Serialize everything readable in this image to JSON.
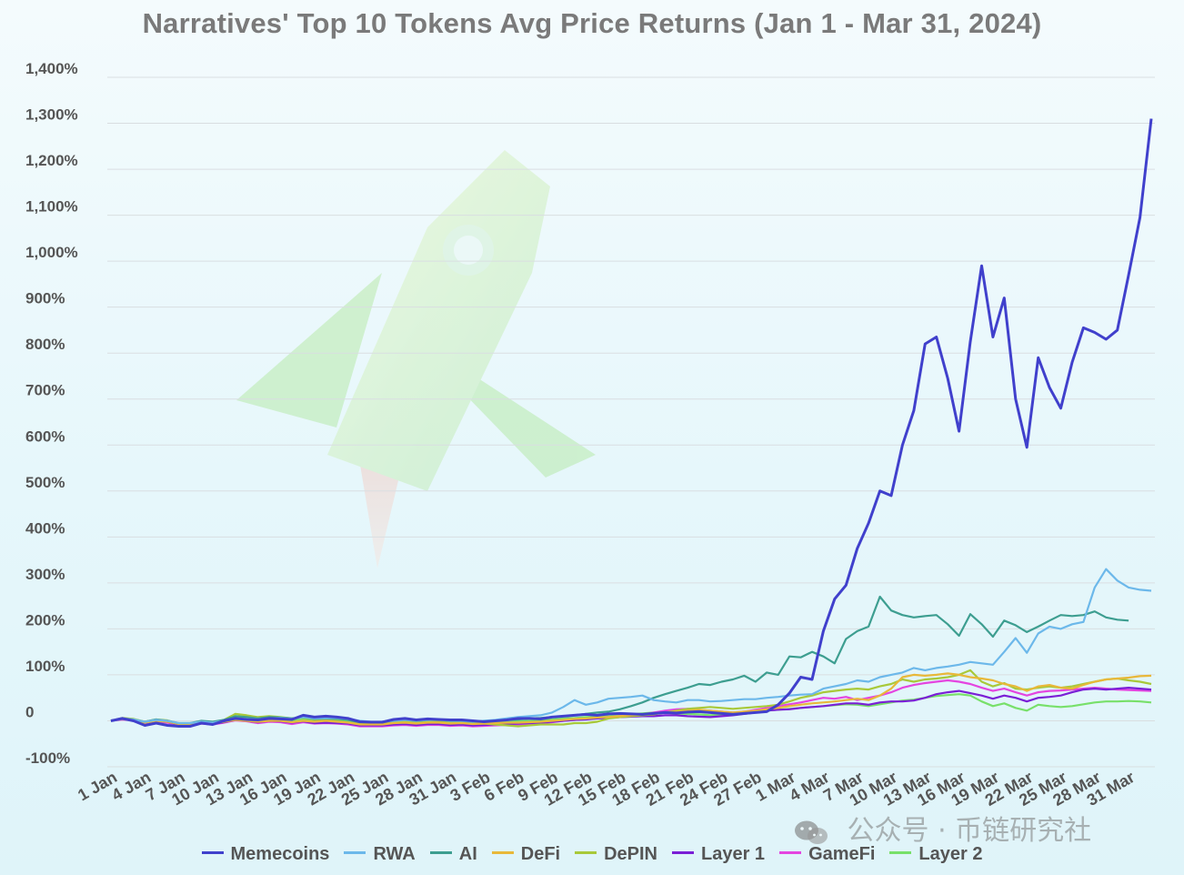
{
  "title": "Narratives' Top 10 Tokens Avg Price Returns (Jan 1 - Mar 31, 2024)",
  "watermark": "公众号 · 币链研究社",
  "chart_data": {
    "type": "line",
    "title": "Narratives' Top 10 Tokens Avg Price Returns (Jan 1 - Mar 31, 2024)",
    "xlabel": "",
    "ylabel": "",
    "ylim": [
      -100,
      1400
    ],
    "y_ticks": [
      -100,
      0,
      100,
      200,
      300,
      400,
      500,
      600,
      700,
      800,
      900,
      1000,
      1100,
      1200,
      1300,
      1400
    ],
    "y_tick_labels": [
      "-100%",
      "0",
      "100%",
      "200%",
      "300%",
      "400%",
      "500%",
      "600%",
      "700%",
      "800%",
      "900%",
      "1,000%",
      "1,100%",
      "1,200%",
      "1,300%",
      "1,400%"
    ],
    "x_start": "2024-01-01",
    "x_end": "2024-03-31",
    "x_ticks": [
      "1 Jan",
      "4 Jan",
      "7 Jan",
      "10 Jan",
      "13 Jan",
      "16 Jan",
      "19 Jan",
      "22 Jan",
      "25 Jan",
      "28 Jan",
      "31 Jan",
      "3 Feb",
      "6 Feb",
      "9 Feb",
      "12 Feb",
      "15 Feb",
      "18 Feb",
      "21 Feb",
      "24 Feb",
      "27 Feb",
      "1 Mar",
      "4 Mar",
      "7 Mar",
      "10 Mar",
      "13 Mar",
      "16 Mar",
      "19 Mar",
      "22 Mar",
      "25 Mar",
      "28 Mar",
      "31 Mar"
    ],
    "grid": true,
    "legend_position": "bottom",
    "series": [
      {
        "name": "Memecoins",
        "color": "#4040cc",
        "values": [
          0,
          5,
          0,
          -10,
          -5,
          -10,
          -12,
          -12,
          -5,
          -8,
          0,
          5,
          3,
          2,
          5,
          4,
          3,
          12,
          8,
          10,
          8,
          5,
          -2,
          -3,
          -3,
          3,
          5,
          2,
          4,
          3,
          2,
          2,
          0,
          -2,
          0,
          2,
          5,
          5,
          4,
          8,
          10,
          12,
          14,
          12,
          15,
          16,
          15,
          14,
          16,
          18,
          17,
          19,
          20,
          18,
          16,
          14,
          16,
          18,
          20,
          35,
          60,
          95,
          90,
          195,
          265,
          295,
          375,
          430,
          500,
          490,
          600,
          675,
          820,
          835,
          745,
          630,
          825,
          990,
          835,
          920,
          700,
          595,
          790,
          725,
          680,
          780,
          855,
          845,
          830,
          850,
          970,
          1095,
          1310
        ]
      },
      {
        "name": "RWA",
        "color": "#6cb8ea",
        "values": [
          0,
          5,
          3,
          -2,
          2,
          0,
          -5,
          -5,
          -2,
          -4,
          0,
          5,
          4,
          3,
          5,
          6,
          4,
          8,
          5,
          6,
          6,
          4,
          0,
          -2,
          -2,
          0,
          2,
          0,
          2,
          2,
          0,
          0,
          -2,
          0,
          2,
          5,
          8,
          10,
          12,
          18,
          30,
          45,
          35,
          40,
          48,
          50,
          52,
          55,
          45,
          42,
          40,
          45,
          45,
          42,
          43,
          45,
          47,
          47,
          50,
          52,
          55,
          57,
          58,
          70,
          75,
          80,
          88,
          85,
          95,
          100,
          105,
          115,
          110,
          115,
          118,
          122,
          128,
          125,
          122,
          150,
          180,
          148,
          190,
          205,
          200,
          210,
          215,
          290,
          330,
          305,
          290,
          285,
          283
        ]
      },
      {
        "name": "AI",
        "color": "#3d9e90",
        "values": [
          0,
          5,
          2,
          -2,
          3,
          0,
          -5,
          -5,
          0,
          -2,
          2,
          10,
          8,
          5,
          8,
          7,
          5,
          8,
          4,
          5,
          4,
          2,
          -3,
          -3,
          -2,
          2,
          3,
          0,
          2,
          3,
          0,
          0,
          -2,
          0,
          0,
          2,
          3,
          5,
          6,
          8,
          10,
          12,
          15,
          18,
          20,
          25,
          32,
          40,
          50,
          58,
          65,
          72,
          80,
          78,
          85,
          90,
          98,
          85,
          105,
          100,
          140,
          138,
          150,
          140,
          125,
          178,
          195,
          205,
          270,
          240,
          230,
          225,
          228,
          230,
          210,
          185,
          232,
          210,
          183,
          218,
          208,
          193,
          205,
          218,
          230,
          228,
          230,
          238,
          225,
          220,
          218
        ]
      },
      {
        "name": "DeFi",
        "color": "#e8b83a",
        "values": [
          0,
          4,
          2,
          -4,
          0,
          -2,
          -7,
          -7,
          -4,
          -6,
          -2,
          2,
          0,
          -2,
          0,
          0,
          -3,
          0,
          -2,
          0,
          -2,
          -4,
          -8,
          -8,
          -8,
          -5,
          -4,
          -6,
          -4,
          -4,
          -6,
          -5,
          -7,
          -6,
          -5,
          -4,
          -4,
          -3,
          -2,
          0,
          2,
          4,
          5,
          7,
          8,
          10,
          12,
          14,
          16,
          18,
          20,
          22,
          24,
          22,
          20,
          18,
          20,
          22,
          25,
          28,
          32,
          35,
          38,
          40,
          42,
          45,
          48,
          45,
          55,
          70,
          95,
          100,
          98,
          100,
          103,
          100,
          95,
          92,
          88,
          80,
          75,
          65,
          75,
          78,
          72,
          70,
          78,
          85,
          90,
          92,
          94,
          97,
          98
        ]
      },
      {
        "name": "DePIN",
        "color": "#a8c93a",
        "values": [
          0,
          6,
          4,
          -2,
          3,
          1,
          -6,
          -6,
          -2,
          -4,
          2,
          15,
          12,
          8,
          10,
          8,
          5,
          7,
          3,
          4,
          3,
          2,
          -5,
          -6,
          -6,
          -3,
          -2,
          -4,
          -2,
          -1,
          -4,
          -4,
          -6,
          -6,
          -8,
          -10,
          -12,
          -10,
          -8,
          -8,
          -8,
          -5,
          -5,
          -2,
          5,
          8,
          10,
          12,
          14,
          18,
          22,
          26,
          28,
          30,
          28,
          26,
          28,
          30,
          32,
          35,
          42,
          50,
          55,
          62,
          65,
          68,
          70,
          68,
          75,
          80,
          90,
          85,
          90,
          92,
          95,
          100,
          110,
          85,
          75,
          82,
          70,
          68,
          72,
          75,
          72,
          75,
          80,
          85,
          90,
          92,
          88,
          85,
          80
        ]
      },
      {
        "name": "Layer 1",
        "color": "#7a1fd6",
        "values": [
          0,
          4,
          2,
          -4,
          0,
          -2,
          -8,
          -8,
          -5,
          -7,
          -3,
          2,
          0,
          -3,
          0,
          -1,
          -4,
          -1,
          -5,
          -4,
          -5,
          -6,
          -10,
          -10,
          -10,
          -8,
          -7,
          -9,
          -7,
          -7,
          -9,
          -8,
          -10,
          -9,
          -8,
          -7,
          -6,
          -5,
          -4,
          -2,
          0,
          2,
          3,
          5,
          6,
          8,
          9,
          10,
          10,
          12,
          12,
          10,
          9,
          8,
          10,
          12,
          15,
          18,
          22,
          24,
          25,
          28,
          30,
          32,
          35,
          38,
          38,
          35,
          40,
          42,
          42,
          44,
          50,
          58,
          62,
          65,
          60,
          55,
          48,
          55,
          50,
          42,
          50,
          52,
          55,
          62,
          68,
          70,
          68,
          70,
          72,
          70,
          68
        ]
      },
      {
        "name": "GameFi",
        "color": "#e445e0",
        "values": [
          0,
          3,
          1,
          -5,
          -1,
          -4,
          -10,
          -10,
          -6,
          -8,
          -4,
          1,
          -1,
          -5,
          -2,
          -3,
          -7,
          -3,
          -6,
          -5,
          -6,
          -8,
          -12,
          -12,
          -12,
          -10,
          -9,
          -11,
          -9,
          -9,
          -11,
          -10,
          -12,
          -11,
          -10,
          -9,
          -8,
          -7,
          -5,
          -3,
          0,
          2,
          4,
          6,
          8,
          10,
          12,
          14,
          18,
          22,
          25,
          26,
          24,
          22,
          20,
          18,
          20,
          24,
          28,
          32,
          36,
          40,
          45,
          50,
          48,
          52,
          45,
          50,
          55,
          62,
          72,
          78,
          82,
          85,
          88,
          85,
          80,
          72,
          65,
          70,
          62,
          55,
          62,
          65,
          66,
          68,
          70,
          72,
          70,
          68,
          67,
          66,
          65
        ]
      },
      {
        "name": "Layer 2",
        "color": "#78e06a",
        "values": [
          0,
          5,
          3,
          -3,
          2,
          0,
          -6,
          -6,
          -2,
          -4,
          1,
          10,
          8,
          4,
          6,
          4,
          1,
          4,
          0,
          1,
          0,
          -2,
          -6,
          -6,
          -6,
          -3,
          -2,
          -4,
          -2,
          -2,
          -4,
          -3,
          -5,
          -4,
          -3,
          -2,
          -1,
          0,
          2,
          3,
          5,
          6,
          8,
          9,
          10,
          12,
          14,
          16,
          18,
          18,
          16,
          15,
          14,
          12,
          14,
          16,
          18,
          20,
          22,
          24,
          26,
          28,
          30,
          32,
          34,
          36,
          35,
          32,
          36,
          40,
          44,
          46,
          50,
          54,
          56,
          58,
          55,
          42,
          32,
          38,
          28,
          22,
          35,
          32,
          30,
          32,
          36,
          40,
          42,
          42,
          43,
          42,
          40
        ]
      }
    ]
  }
}
